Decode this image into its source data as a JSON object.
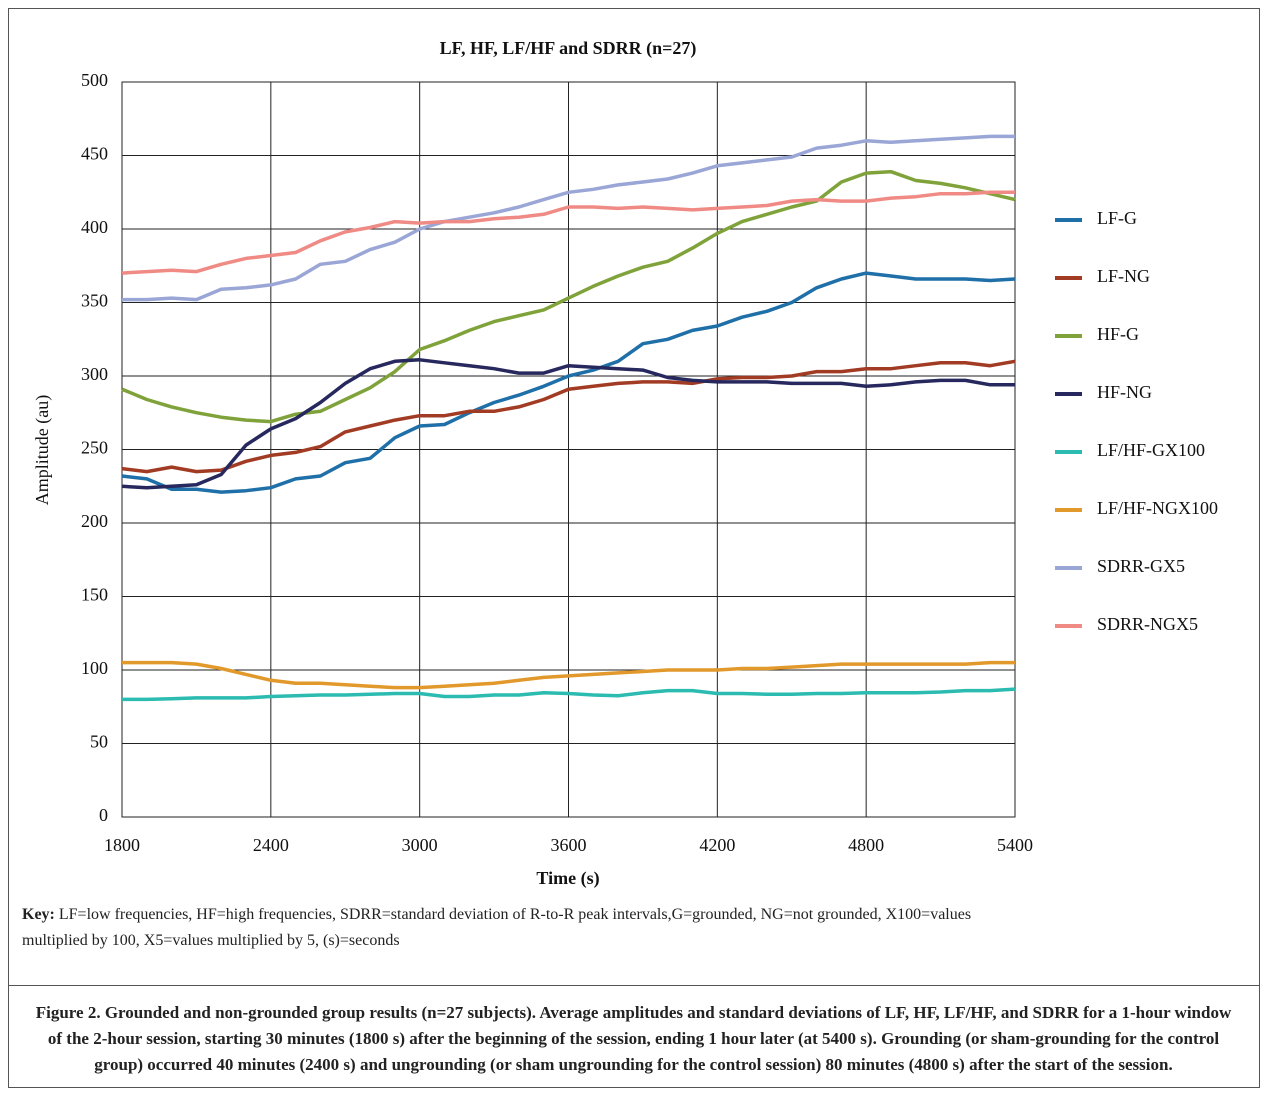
{
  "chart_data": {
    "type": "line",
    "title": "LF, HF, LF/HF and SDRR (n=27)",
    "xlabel": "Time (s)",
    "ylabel": "Amplitude (au)",
    "x": [
      1800,
      1900,
      2000,
      2100,
      2200,
      2300,
      2400,
      2500,
      2600,
      2700,
      2800,
      2900,
      3000,
      3100,
      3200,
      3300,
      3400,
      3500,
      3600,
      3700,
      3800,
      3900,
      4000,
      4100,
      4200,
      4300,
      4400,
      4500,
      4600,
      4700,
      4800,
      4900,
      5000,
      5100,
      5200,
      5300,
      5400
    ],
    "xlim": [
      1800,
      5400
    ],
    "xticks": [
      1800,
      2400,
      3000,
      3600,
      4200,
      4800,
      5400
    ],
    "ylim": [
      0,
      500
    ],
    "yticks": [
      0,
      50,
      100,
      150,
      200,
      250,
      300,
      350,
      400,
      450,
      500
    ],
    "grid": true,
    "legend": "right",
    "series": [
      {
        "name": "LF-G",
        "color": "#1f6fa8",
        "values": [
          232,
          230,
          223,
          223,
          221,
          222,
          224,
          230,
          232,
          241,
          244,
          258,
          266,
          267,
          275,
          282,
          287,
          293,
          300,
          304,
          310,
          322,
          325,
          331,
          334,
          340,
          344,
          350,
          360,
          366,
          370,
          368,
          366,
          366,
          366,
          365,
          366
        ]
      },
      {
        "name": "LF-NG",
        "color": "#a23b23",
        "values": [
          237,
          235,
          238,
          235,
          236,
          242,
          246,
          248,
          252,
          262,
          266,
          270,
          273,
          273,
          276,
          276,
          279,
          284,
          291,
          293,
          295,
          296,
          296,
          295,
          298,
          299,
          299,
          300,
          303,
          303,
          305,
          305,
          307,
          309,
          309,
          307,
          310
        ]
      },
      {
        "name": "HF-G",
        "color": "#7fa23a",
        "values": [
          291,
          284,
          279,
          275,
          272,
          270,
          269,
          274,
          276,
          284,
          292,
          303,
          318,
          324,
          331,
          337,
          341,
          345,
          353,
          361,
          368,
          374,
          378,
          387,
          397,
          405,
          410,
          415,
          419,
          432,
          438,
          439,
          433,
          431,
          428,
          424,
          420
        ]
      },
      {
        "name": "HF-NG",
        "color": "#27285e",
        "values": [
          225,
          224,
          225,
          226,
          233,
          253,
          264,
          271,
          282,
          295,
          305,
          310,
          311,
          309,
          307,
          305,
          302,
          302,
          307,
          306,
          305,
          304,
          299,
          297,
          296,
          296,
          296,
          295,
          295,
          295,
          293,
          294,
          296,
          297,
          297,
          294,
          294
        ]
      },
      {
        "name": "LF/HF-GX100",
        "color": "#2bbbb0",
        "values": [
          80,
          80,
          80.5,
          81,
          81,
          81,
          82,
          82.5,
          83,
          83,
          83.5,
          84,
          84,
          82,
          82,
          83,
          83,
          84.5,
          84,
          83,
          82.5,
          84.5,
          86,
          86,
          84,
          84,
          83.5,
          83.5,
          84,
          84,
          84.5,
          84.5,
          84.5,
          85,
          86,
          86,
          87
        ]
      },
      {
        "name": "LF/HF-NGX100",
        "color": "#e2992b",
        "values": [
          105,
          105,
          105,
          104,
          101,
          97,
          93,
          91,
          91,
          90,
          89,
          88,
          88,
          89,
          90,
          91,
          93,
          95,
          96,
          97,
          98,
          99,
          100,
          100,
          100,
          101,
          101,
          102,
          103,
          104,
          104,
          104,
          104,
          104,
          104,
          105,
          105
        ]
      },
      {
        "name": "SDRR-GX5",
        "color": "#9aa6d6",
        "values": [
          352,
          352,
          353,
          352,
          359,
          360,
          362,
          366,
          376,
          378,
          386,
          391,
          400,
          405,
          408,
          411,
          415,
          420,
          425,
          427,
          430,
          432,
          434,
          438,
          443,
          445,
          447,
          449,
          455,
          457,
          460,
          459,
          460,
          461,
          462,
          463,
          463
        ]
      },
      {
        "name": "SDRR-NGX5",
        "color": "#f08a85",
        "values": [
          370,
          371,
          372,
          371,
          376,
          380,
          382,
          384,
          392,
          398,
          401,
          405,
          404,
          405,
          405,
          407,
          408,
          410,
          415,
          415,
          414,
          415,
          414,
          413,
          414,
          415,
          416,
          419,
          420,
          419,
          419,
          421,
          422,
          424,
          424,
          425,
          425
        ]
      }
    ]
  },
  "key": {
    "label": "Key:",
    "text": "LF=low frequencies, HF=high frequencies, SDRR=standard deviation of R-to-R peak intervals,G=grounded, NG=not grounded, X100=values multiplied by 100, X5=values multiplied by 5, (s)=seconds"
  },
  "caption": "Figure 2.  Grounded and non-grounded group results (n=27 subjects). Average amplitudes and standard deviations of LF, HF, LF/HF, and SDRR for a 1-hour window of the 2-hour session, starting 30 minutes (1800 s) after the beginning of the session, ending 1 hour later (at 5400 s). Grounding (or sham-grounding for the control group) occurred 40 minutes (2400 s) and ungrounding (or sham ungrounding for the control session) 80 minutes (4800 s) after the start of the session."
}
